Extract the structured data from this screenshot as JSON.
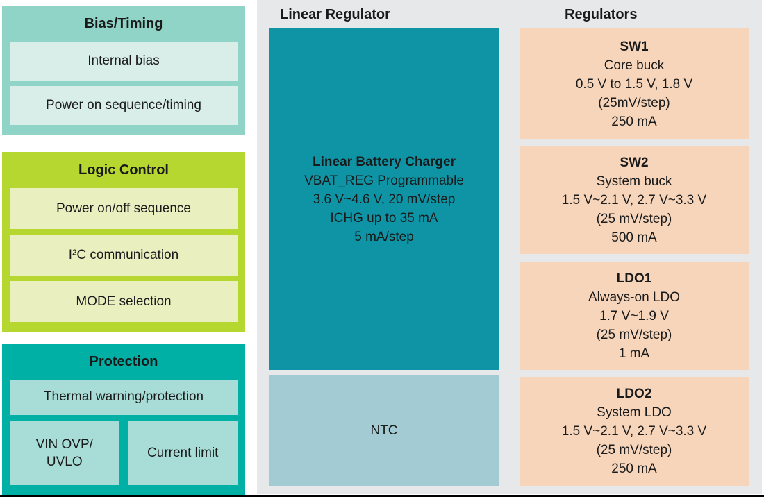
{
  "colors": {
    "bias_outer": "#8fd4c6",
    "bias_inner": "#d9eee8",
    "logic_outer": "#b6d730",
    "logic_inner": "#eaefc0",
    "protection_outer": "#00b0a4",
    "protection_inner": "#a8dcd6",
    "charger_teal": "#0f94a6",
    "ntc_blue": "#a3cbd4",
    "panel_gray": "#e7e8ea",
    "reg_peach": "#f6d5bb"
  },
  "bias_timing": {
    "title": "Bias/Timing",
    "item1": "Internal bias",
    "item2": "Power on sequence/timing"
  },
  "logic_control": {
    "title": "Logic Control",
    "item1": "Power on/off sequence",
    "item2": "I²C communication",
    "item3": "MODE selection"
  },
  "protection": {
    "title": "Protection",
    "item1": "Thermal warning/protection",
    "vin_line1": "VIN OVP/",
    "vin_line2": "UVLO",
    "current_limit": "Current limit"
  },
  "linear_regulator": {
    "header": "Linear Regulator",
    "charger": {
      "title": "Linear Battery Charger",
      "line1": "VBAT_REG Programmable",
      "line2": "3.6 V~4.6 V, 20 mV/step",
      "line3": "ICHG up to 35 mA",
      "line4": "5 mA/step"
    },
    "ntc_label": "NTC"
  },
  "regulators": {
    "header": "Regulators",
    "blocks": [
      {
        "name": "SW1",
        "line1": "Core buck",
        "line2": "0.5 V to 1.5 V, 1.8 V",
        "line3": "(25mV/step)",
        "line4": "250 mA"
      },
      {
        "name": "SW2",
        "line1": "System buck",
        "line2": "1.5 V~2.1 V, 2.7 V~3.3 V",
        "line3": "(25 mV/step)",
        "line4": "500 mA"
      },
      {
        "name": "LDO1",
        "line1": "Always-on LDO",
        "line2": "1.7 V~1.9 V",
        "line3": "(25 mV/step)",
        "line4": "1 mA"
      },
      {
        "name": "LDO2",
        "line1": "System LDO",
        "line2": "1.5 V~2.1 V, 2.7 V~3.3 V",
        "line3": "(25 mV/step)",
        "line4": "250 mA"
      }
    ]
  }
}
